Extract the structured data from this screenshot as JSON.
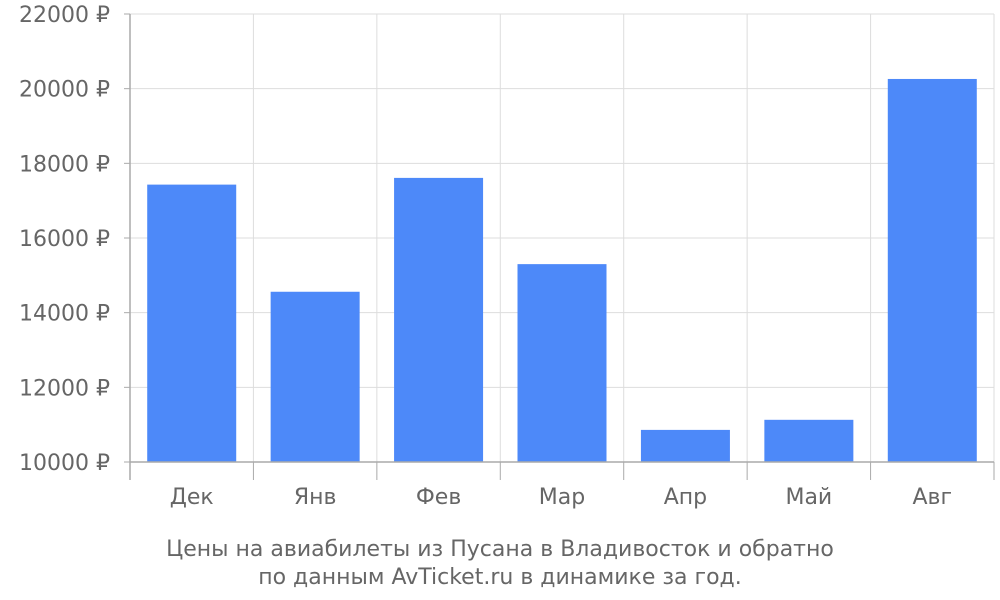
{
  "chart_data": {
    "type": "bar",
    "categories": [
      "Дек",
      "Янв",
      "Фев",
      "Мар",
      "Апр",
      "Май",
      "Авг"
    ],
    "values": [
      17430,
      14560,
      17610,
      15300,
      10860,
      11130,
      20260
    ],
    "ylim": [
      10000,
      22000
    ],
    "yticks": [
      10000,
      12000,
      14000,
      16000,
      18000,
      20000,
      22000
    ],
    "ytick_suffix": " ₽",
    "grid": true,
    "bar_color": "#4d89f9",
    "caption": [
      "Цены на авиабилеты из Пусана в Владивосток и обратно",
      "по данным AvTicket.ru в динамике за год."
    ]
  }
}
